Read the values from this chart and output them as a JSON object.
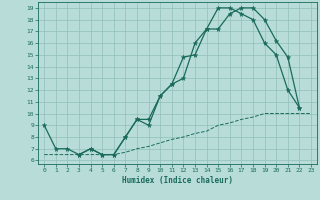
{
  "xlabel": "Humidex (Indice chaleur)",
  "xlim": [
    -0.5,
    23.5
  ],
  "ylim": [
    5.7,
    19.5
  ],
  "yticks": [
    6,
    7,
    8,
    9,
    10,
    11,
    12,
    13,
    14,
    15,
    16,
    17,
    18,
    19
  ],
  "xticks": [
    0,
    1,
    2,
    3,
    4,
    5,
    6,
    7,
    8,
    9,
    10,
    11,
    12,
    13,
    14,
    15,
    16,
    17,
    18,
    19,
    20,
    21,
    22,
    23
  ],
  "bg_color": "#b8ddd8",
  "line_color": "#1a6b5a",
  "grid_color": "#90bfb8",
  "line1_x": [
    0,
    1,
    2,
    3,
    4,
    5,
    6,
    7,
    8,
    9,
    10,
    11,
    12,
    13,
    14,
    15,
    16,
    17,
    18,
    19,
    20,
    21,
    22
  ],
  "line1_y": [
    9.0,
    7.0,
    7.0,
    6.5,
    7.0,
    6.5,
    6.5,
    8.0,
    9.5,
    9.5,
    11.5,
    12.5,
    13.0,
    16.0,
    17.2,
    17.2,
    18.5,
    19.0,
    19.0,
    18.0,
    16.2,
    14.8,
    10.5
  ],
  "line2_x": [
    3,
    4,
    5,
    6,
    7,
    8,
    9,
    10,
    11,
    12,
    13,
    14,
    15,
    16,
    17,
    18,
    19,
    20,
    21,
    22
  ],
  "line2_y": [
    6.5,
    7.0,
    6.5,
    6.5,
    8.0,
    9.5,
    9.0,
    11.5,
    12.5,
    14.8,
    15.0,
    17.2,
    19.0,
    19.0,
    18.5,
    18.0,
    16.0,
    15.0,
    12.0,
    10.5
  ],
  "line3_x": [
    0,
    3,
    5,
    6,
    7,
    8,
    9,
    10,
    11,
    12,
    13,
    14,
    15,
    16,
    17,
    18,
    19,
    20,
    21,
    22,
    23
  ],
  "line3_y": [
    6.5,
    6.5,
    6.5,
    6.5,
    6.7,
    7.0,
    7.2,
    7.5,
    7.8,
    8.0,
    8.3,
    8.5,
    9.0,
    9.2,
    9.5,
    9.7,
    10.0,
    10.0,
    10.0,
    10.0,
    10.0
  ]
}
